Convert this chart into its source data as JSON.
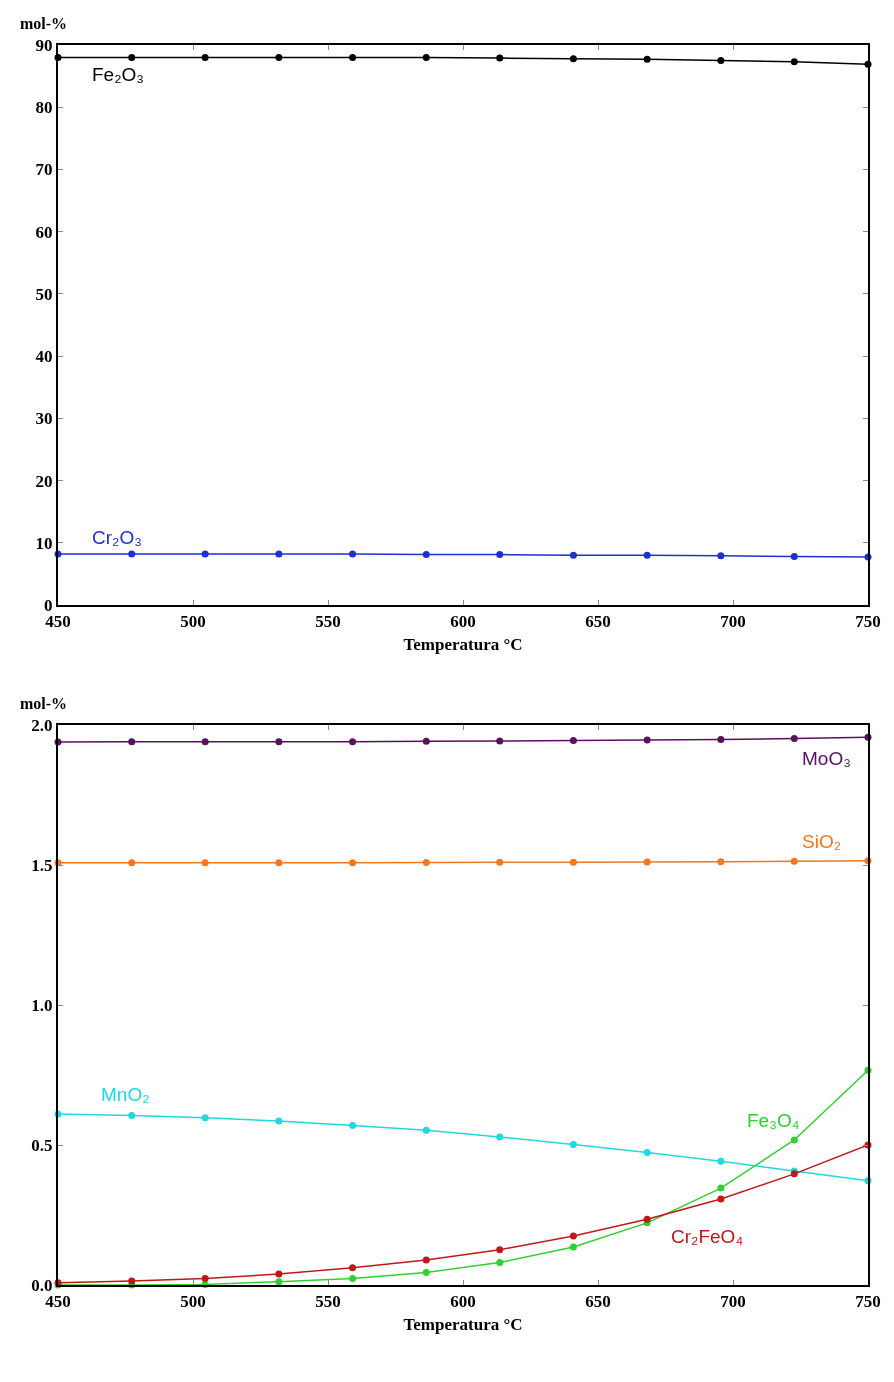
{
  "chart_data": [
    {
      "type": "line",
      "ylabel": "mol-%",
      "xlabel": "Temperatura °C",
      "x": [
        450,
        477.3,
        504.5,
        531.8,
        559.1,
        586.4,
        613.6,
        640.9,
        668.2,
        695.5,
        722.7,
        750
      ],
      "series": [
        {
          "name": "Fe₂O₃",
          "color": "#000000",
          "values": [
            88,
            88,
            88,
            88,
            88,
            88,
            87.9,
            87.8,
            87.7,
            87.5,
            87.3,
            86.9
          ]
        },
        {
          "name": "Cr₂O₃",
          "color": "#1f2fd0",
          "values": [
            8.2,
            8.2,
            8.2,
            8.2,
            8.2,
            8.1,
            8.1,
            8.0,
            8.0,
            7.9,
            7.8,
            7.7
          ]
        }
      ],
      "xlim": [
        450,
        750
      ],
      "xticks": [
        450,
        500,
        550,
        600,
        650,
        700,
        750
      ],
      "ylim": [
        0,
        90
      ],
      "yticks": [
        0,
        10,
        20,
        30,
        40,
        50,
        60,
        70,
        80,
        90
      ],
      "grid": false,
      "legend": false,
      "marker": "circle",
      "line_style": "solid"
    },
    {
      "type": "line",
      "ylabel": "mol-%",
      "xlabel": "Temperatura °C",
      "x": [
        450,
        477.3,
        504.5,
        531.8,
        559.1,
        586.4,
        613.6,
        640.9,
        668.2,
        695.5,
        722.7,
        750
      ],
      "series": [
        {
          "name": "MoO₃",
          "color": "#5a1060",
          "values": [
            1.939,
            1.94,
            1.94,
            1.94,
            1.94,
            1.942,
            1.943,
            1.945,
            1.946,
            1.948,
            1.952,
            1.956
          ]
        },
        {
          "name": "SiO₂",
          "color": "#f07820",
          "values": [
            1.508,
            1.508,
            1.508,
            1.508,
            1.508,
            1.509,
            1.51,
            1.51,
            1.511,
            1.512,
            1.513,
            1.515
          ]
        },
        {
          "name": "MnO₂",
          "color": "#20d8e0",
          "values": [
            0.611,
            0.605,
            0.597,
            0.586,
            0.57,
            0.553,
            0.529,
            0.502,
            0.473,
            0.442,
            0.407,
            0.372
          ]
        },
        {
          "name": "Fe₃O₄",
          "color": "#30d030",
          "values": [
            0.0,
            0.0,
            0.002,
            0.012,
            0.023,
            0.045,
            0.08,
            0.136,
            0.222,
            0.346,
            0.518,
            0.767
          ]
        },
        {
          "name": "Cr₂FeO₄",
          "color": "#c01818",
          "values": [
            0.008,
            0.014,
            0.023,
            0.039,
            0.062,
            0.089,
            0.126,
            0.175,
            0.235,
            0.307,
            0.397,
            0.5
          ]
        }
      ],
      "xlim": [
        450,
        750
      ],
      "xticks": [
        450,
        500,
        550,
        600,
        650,
        700,
        750
      ],
      "ylim": [
        0,
        2
      ],
      "yticks": [
        {
          "value": 0,
          "label": "0.0"
        },
        {
          "value": 0.5,
          "label": "0.5"
        },
        {
          "value": 1,
          "label": "1.0"
        },
        {
          "value": 1.5,
          "label": "1.5"
        },
        {
          "value": 2,
          "label": "2.0"
        }
      ],
      "grid": false,
      "legend": false,
      "marker": "circle",
      "line_style": "solid"
    }
  ]
}
